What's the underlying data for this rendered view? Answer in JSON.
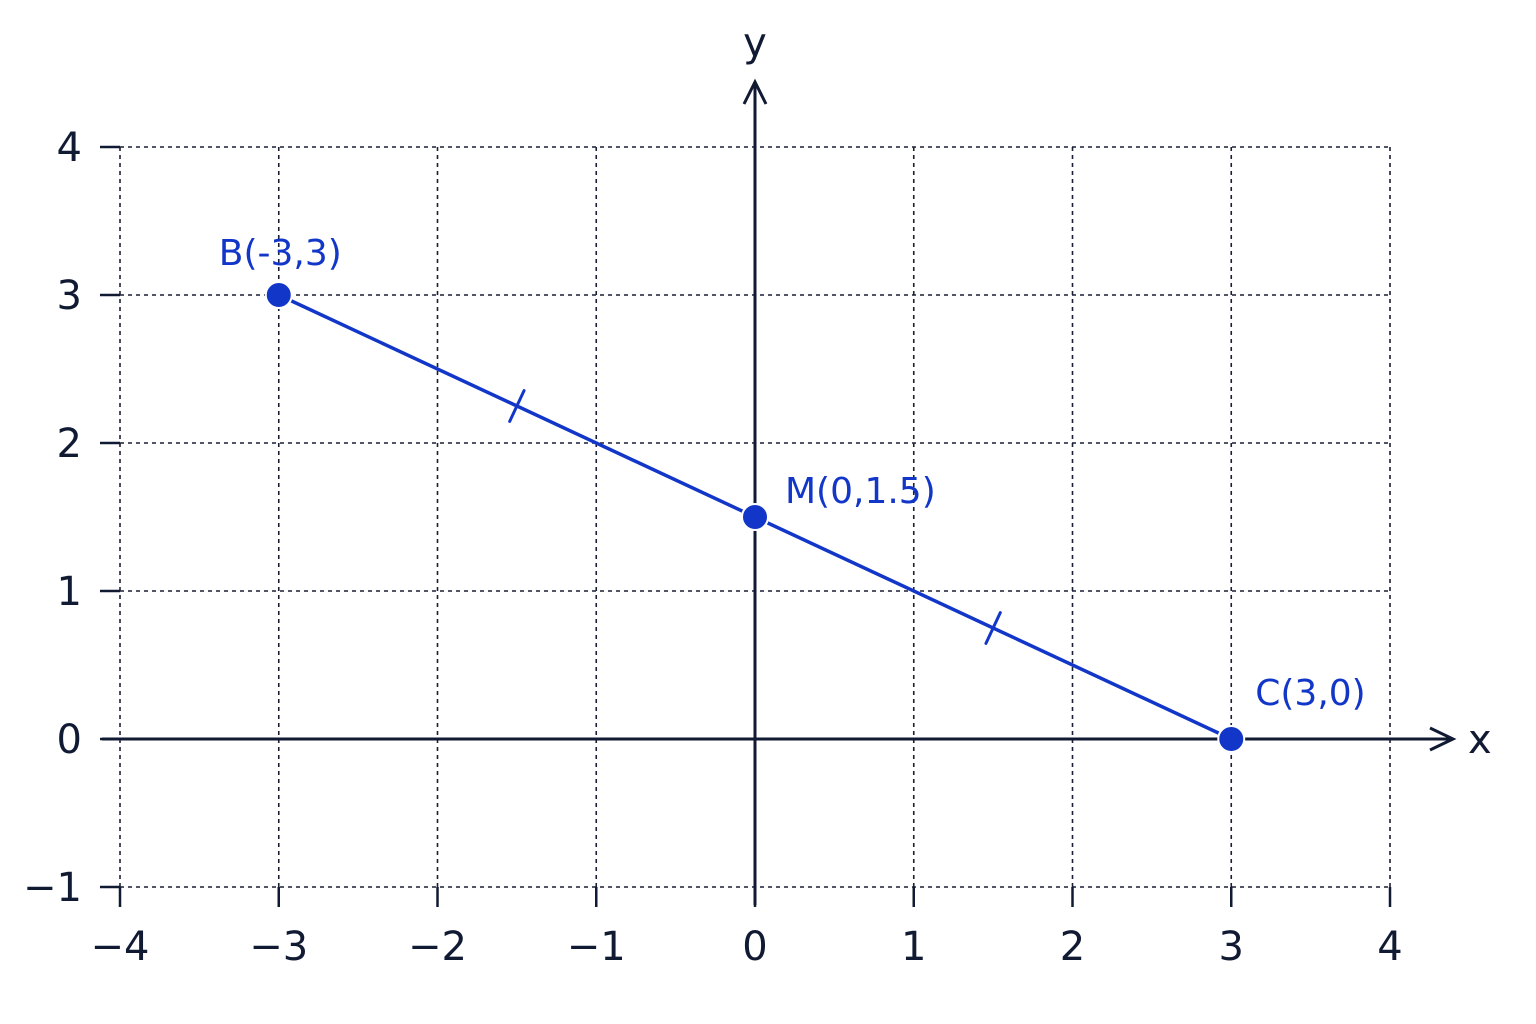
{
  "chart_data": {
    "type": "scatter",
    "title": "",
    "xlabel": "x",
    "ylabel": "y",
    "xlim": [
      -4,
      4
    ],
    "ylim": [
      -1,
      4
    ],
    "x_ticks": [
      -4,
      -3,
      -2,
      -1,
      0,
      1,
      2,
      3,
      4
    ],
    "y_ticks": [
      -1,
      0,
      1,
      2,
      3,
      4
    ],
    "x_tick_labels": [
      "−4",
      "−3",
      "−2",
      "−1",
      "0",
      "1",
      "2",
      "3",
      "4"
    ],
    "y_tick_labels": [
      "−1",
      "0",
      "1",
      "2",
      "3",
      "4"
    ],
    "grid": true,
    "points": [
      {
        "id": "B",
        "label": "B(-3,3)",
        "x": -3,
        "y": 3
      },
      {
        "id": "M",
        "label": "M(0,1.5)",
        "x": 0,
        "y": 1.5
      },
      {
        "id": "C",
        "label": "C(3,0)",
        "x": 3,
        "y": 0
      }
    ],
    "segments": [
      {
        "from": "B",
        "to": "C",
        "equal_marks": true
      }
    ],
    "colors": {
      "accent": "#1237c8",
      "axis": "#111a33",
      "grid": "#1a1f33"
    }
  }
}
